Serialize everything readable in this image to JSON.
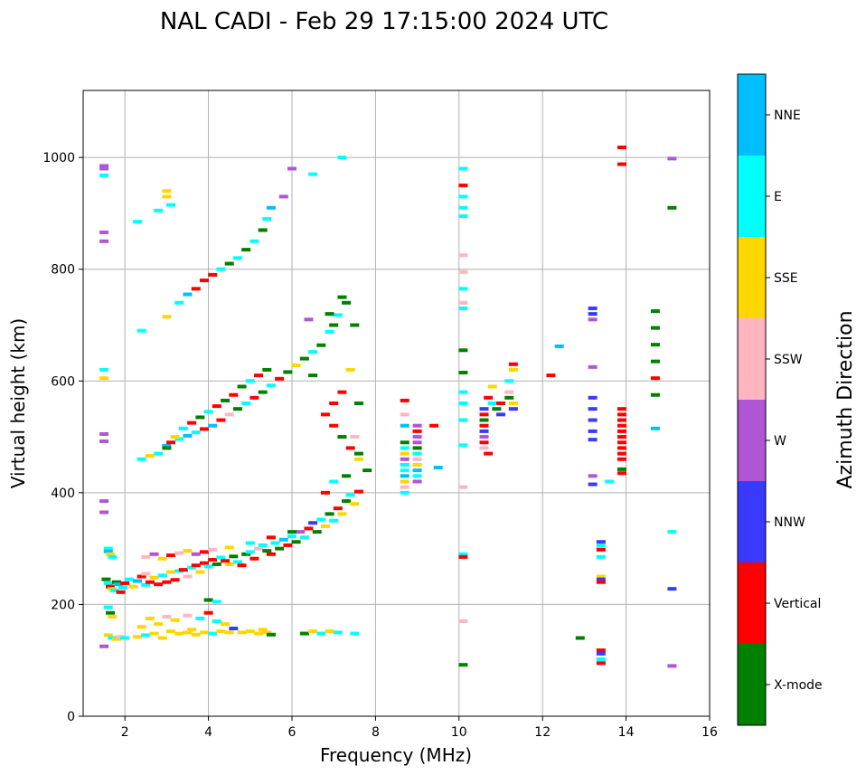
{
  "chart_data": {
    "type": "scatter",
    "title": "NAL CADI - Feb 29 17:15:00 2024 UTC",
    "xlabel": "Frequency (MHz)",
    "ylabel": "Virtual height (km)",
    "xlim": [
      1,
      16
    ],
    "ylim": [
      0,
      1120
    ],
    "xticks": [
      2,
      4,
      6,
      8,
      10,
      12,
      14,
      16
    ],
    "yticks": [
      0,
      200,
      400,
      600,
      800,
      1000
    ],
    "grid": true,
    "colorbar": {
      "title": "Azimuth Direction",
      "categories": [
        {
          "name": "X-mode",
          "color": "#008000"
        },
        {
          "name": "Vertical",
          "color": "#ff0000"
        },
        {
          "name": "NNW",
          "color": "#3a3aff"
        },
        {
          "name": "W",
          "color": "#b055d6"
        },
        {
          "name": "SSW",
          "color": "#ffb6c1"
        },
        {
          "name": "SSE",
          "color": "#ffd700"
        },
        {
          "name": "E",
          "color": "#00ffff"
        },
        {
          "name": "NNE",
          "color": "#00bfff"
        }
      ]
    },
    "points": [
      [
        1.5,
        985,
        3
      ],
      [
        1.5,
        980,
        3
      ],
      [
        1.5,
        968,
        6
      ],
      [
        1.5,
        866,
        3
      ],
      [
        1.5,
        850,
        3
      ],
      [
        1.5,
        620,
        6
      ],
      [
        1.5,
        605,
        5
      ],
      [
        1.5,
        505,
        3
      ],
      [
        1.5,
        492,
        3
      ],
      [
        1.5,
        385,
        3
      ],
      [
        1.5,
        365,
        3
      ],
      [
        1.5,
        125,
        3
      ],
      [
        1.6,
        300,
        6
      ],
      [
        1.6,
        295,
        7
      ],
      [
        1.65,
        290,
        5
      ],
      [
        1.7,
        285,
        6
      ],
      [
        1.55,
        245,
        0
      ],
      [
        1.6,
        238,
        6
      ],
      [
        1.65,
        232,
        1
      ],
      [
        1.7,
        228,
        5
      ],
      [
        1.75,
        225,
        6
      ],
      [
        1.8,
        240,
        0
      ],
      [
        1.85,
        236,
        7
      ],
      [
        1.9,
        222,
        1
      ],
      [
        1.95,
        230,
        6
      ],
      [
        1.6,
        195,
        6
      ],
      [
        1.65,
        185,
        0
      ],
      [
        1.7,
        178,
        5
      ],
      [
        1.6,
        145,
        5
      ],
      [
        1.7,
        140,
        6
      ],
      [
        1.8,
        138,
        5
      ],
      [
        1.9,
        142,
        4
      ],
      [
        2.0,
        140,
        6
      ],
      [
        2.0,
        238,
        1
      ],
      [
        2.1,
        245,
        6
      ],
      [
        2.2,
        232,
        5
      ],
      [
        2.3,
        242,
        7
      ],
      [
        2.4,
        250,
        1
      ],
      [
        2.5,
        255,
        4
      ],
      [
        2.5,
        235,
        6
      ],
      [
        2.6,
        240,
        1
      ],
      [
        2.7,
        248,
        5
      ],
      [
        2.8,
        236,
        1
      ],
      [
        2.9,
        252,
        6
      ],
      [
        3.0,
        240,
        1
      ],
      [
        3.1,
        258,
        5
      ],
      [
        3.2,
        244,
        1
      ],
      [
        3.3,
        260,
        6
      ],
      [
        3.4,
        262,
        1
      ],
      [
        3.5,
        250,
        4
      ],
      [
        3.6,
        266,
        6
      ],
      [
        3.7,
        270,
        1
      ],
      [
        3.8,
        258,
        5
      ],
      [
        3.9,
        274,
        1
      ],
      [
        4.0,
        268,
        6
      ],
      [
        4.1,
        280,
        1
      ],
      [
        4.2,
        272,
        0
      ],
      [
        4.3,
        284,
        6
      ],
      [
        4.4,
        278,
        1
      ],
      [
        4.5,
        272,
        5
      ],
      [
        4.6,
        286,
        0
      ],
      [
        4.7,
        276,
        6
      ],
      [
        4.8,
        270,
        1
      ],
      [
        4.9,
        290,
        0
      ],
      [
        5.0,
        294,
        6
      ],
      [
        5.1,
        282,
        1
      ],
      [
        5.2,
        300,
        4
      ],
      [
        5.3,
        306,
        6
      ],
      [
        5.4,
        296,
        0
      ],
      [
        5.5,
        290,
        1
      ],
      [
        5.6,
        310,
        6
      ],
      [
        5.7,
        300,
        0
      ],
      [
        5.8,
        316,
        7
      ],
      [
        5.9,
        306,
        1
      ],
      [
        6.0,
        322,
        6
      ],
      [
        6.1,
        312,
        0
      ],
      [
        6.2,
        330,
        3
      ],
      [
        6.3,
        320,
        6
      ],
      [
        6.4,
        336,
        1
      ],
      [
        6.5,
        346,
        2
      ],
      [
        6.6,
        330,
        0
      ],
      [
        6.7,
        352,
        6
      ],
      [
        6.8,
        340,
        5
      ],
      [
        6.9,
        362,
        0
      ],
      [
        7.0,
        350,
        6
      ],
      [
        7.1,
        372,
        1
      ],
      [
        7.2,
        362,
        5
      ],
      [
        7.3,
        385,
        0
      ],
      [
        7.4,
        396,
        6
      ],
      [
        7.5,
        380,
        5
      ],
      [
        7.6,
        402,
        1
      ],
      [
        2.5,
        285,
        4
      ],
      [
        2.7,
        290,
        3
      ],
      [
        2.9,
        282,
        5
      ],
      [
        3.1,
        288,
        1
      ],
      [
        3.3,
        292,
        4
      ],
      [
        3.5,
        296,
        5
      ],
      [
        3.7,
        290,
        3
      ],
      [
        3.9,
        294,
        1
      ],
      [
        4.1,
        298,
        4
      ],
      [
        4.5,
        302,
        5
      ],
      [
        5.0,
        310,
        6
      ],
      [
        5.5,
        320,
        1
      ],
      [
        6.0,
        330,
        0
      ],
      [
        2.4,
        160,
        5
      ],
      [
        2.6,
        175,
        5
      ],
      [
        2.8,
        165,
        5
      ],
      [
        3.0,
        178,
        4
      ],
      [
        3.2,
        172,
        5
      ],
      [
        3.5,
        180,
        4
      ],
      [
        3.8,
        175,
        6
      ],
      [
        4.0,
        185,
        1
      ],
      [
        4.2,
        170,
        6
      ],
      [
        4.4,
        165,
        5
      ],
      [
        4.0,
        208,
        0
      ],
      [
        4.2,
        205,
        6
      ],
      [
        2.3,
        142,
        5
      ],
      [
        2.5,
        145,
        6
      ],
      [
        2.7,
        148,
        5
      ],
      [
        2.9,
        140,
        5
      ],
      [
        3.1,
        152,
        5
      ],
      [
        3.3,
        148,
        5
      ],
      [
        3.5,
        150,
        5
      ],
      [
        3.6,
        155,
        5
      ],
      [
        3.7,
        146,
        5
      ],
      [
        3.9,
        150,
        5
      ],
      [
        4.1,
        148,
        6
      ],
      [
        4.3,
        152,
        5
      ],
      [
        4.5,
        150,
        5
      ],
      [
        4.6,
        157,
        2
      ],
      [
        4.8,
        150,
        5
      ],
      [
        5.0,
        152,
        5
      ],
      [
        5.2,
        148,
        5
      ],
      [
        5.4,
        150,
        5
      ],
      [
        5.5,
        146,
        0
      ],
      [
        5.3,
        155,
        5
      ],
      [
        6.3,
        148,
        0
      ],
      [
        6.5,
        152,
        5
      ],
      [
        6.7,
        148,
        6
      ],
      [
        6.9,
        152,
        5
      ],
      [
        7.1,
        150,
        6
      ],
      [
        7.5,
        148,
        6
      ],
      [
        2.4,
        460,
        6
      ],
      [
        2.6,
        466,
        5
      ],
      [
        2.8,
        470,
        6
      ],
      [
        3.0,
        484,
        7
      ],
      [
        3.1,
        490,
        1
      ],
      [
        3.3,
        496,
        6
      ],
      [
        3.5,
        502,
        7
      ],
      [
        3.7,
        508,
        6
      ],
      [
        3.9,
        514,
        1
      ],
      [
        4.1,
        520,
        7
      ],
      [
        4.3,
        530,
        1
      ],
      [
        4.5,
        540,
        4
      ],
      [
        4.7,
        550,
        0
      ],
      [
        4.9,
        560,
        6
      ],
      [
        5.1,
        570,
        1
      ],
      [
        5.3,
        580,
        0
      ],
      [
        5.5,
        592,
        6
      ],
      [
        5.7,
        604,
        1
      ],
      [
        5.9,
        616,
        0
      ],
      [
        6.1,
        628,
        5
      ],
      [
        6.3,
        640,
        0
      ],
      [
        6.5,
        652,
        6
      ],
      [
        6.7,
        664,
        0
      ],
      [
        6.9,
        688,
        6
      ],
      [
        7.0,
        700,
        0
      ],
      [
        7.1,
        718,
        6
      ],
      [
        7.3,
        740,
        0
      ],
      [
        3.0,
        480,
        0
      ],
      [
        3.2,
        500,
        5
      ],
      [
        3.4,
        515,
        6
      ],
      [
        3.6,
        525,
        1
      ],
      [
        3.8,
        535,
        0
      ],
      [
        4.0,
        545,
        6
      ],
      [
        4.2,
        555,
        1
      ],
      [
        4.4,
        565,
        0
      ],
      [
        4.6,
        575,
        1
      ],
      [
        4.8,
        590,
        0
      ],
      [
        5.0,
        600,
        6
      ],
      [
        5.2,
        610,
        1
      ],
      [
        5.4,
        620,
        0
      ],
      [
        3.3,
        740,
        6
      ],
      [
        3.5,
        755,
        7
      ],
      [
        3.7,
        765,
        1
      ],
      [
        3.9,
        780,
        1
      ],
      [
        4.1,
        790,
        1
      ],
      [
        4.3,
        800,
        6
      ],
      [
        4.5,
        810,
        0
      ],
      [
        4.7,
        820,
        6
      ],
      [
        4.9,
        835,
        0
      ],
      [
        5.1,
        850,
        6
      ],
      [
        5.3,
        870,
        0
      ],
      [
        5.4,
        890,
        6
      ],
      [
        5.5,
        910,
        7
      ],
      [
        3.0,
        940,
        5
      ],
      [
        3.0,
        930,
        5
      ],
      [
        3.1,
        915,
        6
      ],
      [
        2.8,
        905,
        6
      ],
      [
        2.3,
        885,
        6
      ],
      [
        3.0,
        715,
        5
      ],
      [
        2.4,
        690,
        6
      ],
      [
        6.5,
        970,
        6
      ],
      [
        6.0,
        980,
        3
      ],
      [
        7.2,
        1000,
        6
      ],
      [
        5.8,
        930,
        3
      ],
      [
        6.5,
        610,
        0
      ],
      [
        6.4,
        710,
        3
      ],
      [
        6.9,
        720,
        0
      ],
      [
        7.2,
        750,
        0
      ],
      [
        7.5,
        700,
        0
      ],
      [
        6.8,
        540,
        1
      ],
      [
        7.0,
        520,
        1
      ],
      [
        7.2,
        500,
        0
      ],
      [
        7.4,
        480,
        1
      ],
      [
        7.6,
        460,
        5
      ],
      [
        7.8,
        440,
        0
      ],
      [
        7.0,
        420,
        6
      ],
      [
        6.8,
        400,
        1
      ],
      [
        7.2,
        580,
        1
      ],
      [
        7.6,
        560,
        0
      ],
      [
        7.4,
        620,
        5
      ],
      [
        7.0,
        560,
        1
      ],
      [
        7.3,
        430,
        0
      ],
      [
        7.5,
        500,
        4
      ],
      [
        7.6,
        470,
        0
      ],
      [
        8.7,
        565,
        1
      ],
      [
        8.7,
        540,
        4
      ],
      [
        8.7,
        520,
        7
      ],
      [
        8.7,
        490,
        0
      ],
      [
        8.7,
        480,
        6
      ],
      [
        8.7,
        470,
        5
      ],
      [
        8.7,
        460,
        3
      ],
      [
        8.7,
        450,
        6
      ],
      [
        8.7,
        440,
        6
      ],
      [
        8.7,
        430,
        7
      ],
      [
        8.7,
        420,
        5
      ],
      [
        8.7,
        410,
        4
      ],
      [
        8.7,
        400,
        6
      ],
      [
        9.0,
        520,
        3
      ],
      [
        9.0,
        510,
        1
      ],
      [
        9.0,
        500,
        3
      ],
      [
        9.0,
        490,
        3
      ],
      [
        9.0,
        480,
        0
      ],
      [
        9.0,
        470,
        6
      ],
      [
        9.0,
        460,
        4
      ],
      [
        9.0,
        450,
        5
      ],
      [
        9.0,
        440,
        7
      ],
      [
        9.0,
        430,
        6
      ],
      [
        9.0,
        420,
        3
      ],
      [
        9.4,
        520,
        1
      ],
      [
        9.5,
        445,
        7
      ],
      [
        10.1,
        980,
        6
      ],
      [
        10.1,
        950,
        1
      ],
      [
        10.1,
        930,
        6
      ],
      [
        10.1,
        910,
        6
      ],
      [
        10.1,
        895,
        6
      ],
      [
        10.1,
        825,
        4
      ],
      [
        10.1,
        795,
        4
      ],
      [
        10.1,
        765,
        6
      ],
      [
        10.1,
        740,
        4
      ],
      [
        10.1,
        730,
        6
      ],
      [
        10.1,
        655,
        0
      ],
      [
        10.1,
        615,
        0
      ],
      [
        10.1,
        580,
        6
      ],
      [
        10.1,
        560,
        6
      ],
      [
        10.1,
        530,
        6
      ],
      [
        10.1,
        485,
        6
      ],
      [
        10.1,
        410,
        4
      ],
      [
        10.1,
        290,
        6
      ],
      [
        10.1,
        285,
        1
      ],
      [
        10.1,
        170,
        4
      ],
      [
        10.1,
        92,
        0
      ],
      [
        10.6,
        550,
        2
      ],
      [
        10.6,
        540,
        1
      ],
      [
        10.6,
        530,
        0
      ],
      [
        10.6,
        520,
        1
      ],
      [
        10.6,
        510,
        2
      ],
      [
        10.6,
        500,
        3
      ],
      [
        10.6,
        490,
        1
      ],
      [
        10.6,
        480,
        4
      ],
      [
        10.7,
        570,
        1
      ],
      [
        10.7,
        470,
        1
      ],
      [
        10.8,
        560,
        6
      ],
      [
        10.8,
        590,
        5
      ],
      [
        10.9,
        550,
        0
      ],
      [
        11.0,
        560,
        1
      ],
      [
        11.0,
        540,
        2
      ],
      [
        11.2,
        600,
        6
      ],
      [
        11.2,
        580,
        4
      ],
      [
        11.2,
        570,
        0
      ],
      [
        11.3,
        560,
        5
      ],
      [
        11.3,
        550,
        2
      ],
      [
        11.3,
        630,
        1
      ],
      [
        11.3,
        620,
        5
      ],
      [
        12.2,
        610,
        1
      ],
      [
        12.4,
        662,
        7
      ],
      [
        12.9,
        140,
        0
      ],
      [
        13.2,
        730,
        2
      ],
      [
        13.2,
        720,
        2
      ],
      [
        13.2,
        710,
        3
      ],
      [
        13.2,
        625,
        3
      ],
      [
        13.2,
        570,
        2
      ],
      [
        13.2,
        550,
        2
      ],
      [
        13.2,
        530,
        2
      ],
      [
        13.2,
        510,
        2
      ],
      [
        13.2,
        495,
        2
      ],
      [
        13.2,
        430,
        3
      ],
      [
        13.2,
        415,
        2
      ],
      [
        13.6,
        420,
        6
      ],
      [
        13.4,
        312,
        2
      ],
      [
        13.4,
        305,
        6
      ],
      [
        13.4,
        298,
        1
      ],
      [
        13.4,
        285,
        6
      ],
      [
        13.4,
        250,
        5
      ],
      [
        13.4,
        245,
        2
      ],
      [
        13.4,
        240,
        1
      ],
      [
        13.4,
        118,
        1
      ],
      [
        13.4,
        112,
        2
      ],
      [
        13.4,
        102,
        6
      ],
      [
        13.4,
        95,
        1
      ],
      [
        13.9,
        1018,
        1
      ],
      [
        13.9,
        988,
        1
      ],
      [
        13.9,
        550,
        1
      ],
      [
        13.9,
        540,
        1
      ],
      [
        13.9,
        530,
        1
      ],
      [
        13.9,
        520,
        1
      ],
      [
        13.9,
        510,
        1
      ],
      [
        13.9,
        500,
        1
      ],
      [
        13.9,
        490,
        1
      ],
      [
        13.9,
        480,
        1
      ],
      [
        13.9,
        470,
        1
      ],
      [
        13.9,
        460,
        1
      ],
      [
        13.9,
        442,
        0
      ],
      [
        13.9,
        435,
        1
      ],
      [
        14.7,
        725,
        0
      ],
      [
        14.7,
        695,
        0
      ],
      [
        14.7,
        665,
        0
      ],
      [
        14.7,
        635,
        0
      ],
      [
        14.7,
        605,
        1
      ],
      [
        14.7,
        575,
        0
      ],
      [
        14.7,
        515,
        7
      ],
      [
        15.1,
        998,
        3
      ],
      [
        15.1,
        910,
        0
      ],
      [
        15.1,
        330,
        6
      ],
      [
        15.1,
        228,
        2
      ],
      [
        15.1,
        90,
        3
      ]
    ]
  }
}
